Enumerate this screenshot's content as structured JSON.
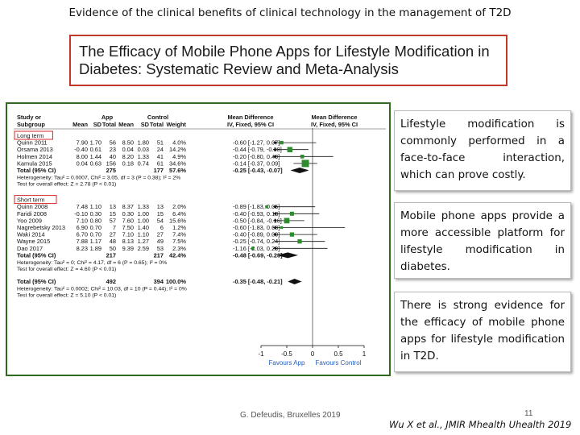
{
  "slide": {
    "title": "Evidence  of the clinical benefits  of clinical technology  in the management of T2D",
    "paper_title_line1": "The Efficacy of Mobile Phone Apps for Lifestyle Modification in",
    "paper_title_line2": "Diabetes: Systematic Review and Meta-Analysis",
    "bullets": [
      "Lifestyle modification is commonly performed in a face-to-face interaction, which can prove costly.",
      "Mobile phone apps provide a more accessible platform for lifestyle modification in diabetes.",
      "There is strong evidence for the efficacy of mobile phone apps for lifestyle modification in T2D."
    ],
    "footer_left": "G. Defeudis, Bruxelles 2019",
    "page_number": "11",
    "citation": "Wu X et al., JMIR Mhealth Uhealth 2019"
  },
  "forest": {
    "headers": {
      "study_or": "Study or",
      "subgroup": "Subgroup",
      "app": "App",
      "control": "Control",
      "mean_difference": "Mean Difference",
      "iv_fixed": "IV, Fixed, 95% CI",
      "mean": "Mean",
      "sd": "SD",
      "total": "Total",
      "weight": "Weight"
    },
    "groups": [
      {
        "label": "Long term",
        "studies": [
          {
            "study": "Quinn 2011",
            "app_mean": "7.90",
            "app_sd": "1.70",
            "app_total": "56",
            "ctrl_mean": "8.50",
            "ctrl_sd": "1.80",
            "ctrl_total": "51",
            "weight": "4.0%",
            "ci": "-0.60 [-1.27, 0.07]",
            "md": -0.6,
            "lo": -1.27,
            "hi": 0.07
          },
          {
            "study": "Orsama 2013",
            "app_mean": "-0.40",
            "app_sd": "0.61",
            "app_total": "23",
            "ctrl_mean": "0.04",
            "ctrl_sd": "0.03",
            "ctrl_total": "24",
            "weight": "14.2%",
            "ci": "-0.44 [-0.79, -0.08]",
            "md": -0.44,
            "lo": -0.79,
            "hi": -0.08
          },
          {
            "study": "Holmen 2014",
            "app_mean": "8.00",
            "app_sd": "1.44",
            "app_total": "40",
            "ctrl_mean": "8.20",
            "ctrl_sd": "1.33",
            "ctrl_total": "41",
            "weight": "4.9%",
            "ci": "-0.20 [-0.80, 0.40]",
            "md": -0.2,
            "lo": -0.8,
            "hi": 0.4
          },
          {
            "study": "Kamula 2015",
            "app_mean": "0.04",
            "app_sd": "0.63",
            "app_total": "156",
            "ctrl_mean": "0.18",
            "ctrl_sd": "0.74",
            "ctrl_total": "61",
            "weight": "34.6%",
            "ci": "-0.14 [-0.37, 0.09]",
            "md": -0.14,
            "lo": -0.37,
            "hi": 0.09
          }
        ],
        "total": {
          "label": "Total (95% CI)",
          "app_total": "275",
          "ctrl_total": "177",
          "weight": "57.6%",
          "ci": "-0.25 [-0.43, -0.07]",
          "md": -0.25,
          "lo": -0.43,
          "hi": -0.07
        },
        "heterogeneity": "Heterogeneity: Tau² = 0.0007, Chi² = 3.05, df = 3 (P = 0.38); I² = 2%",
        "overall": "Test for overall effect: Z = 2.78 (P < 0.01)"
      },
      {
        "label": "Short term",
        "studies": [
          {
            "study": "Quinn 2008",
            "app_mean": "7.48",
            "app_sd": "1.10",
            "app_total": "13",
            "ctrl_mean": "8.37",
            "ctrl_sd": "1.33",
            "ctrl_total": "13",
            "weight": "2.0%",
            "ci": "-0.89 [-1.83, 0.05]",
            "md": -0.89,
            "lo": -1.83,
            "hi": 0.05
          },
          {
            "study": "Faridi 2008",
            "app_mean": "-0.10",
            "app_sd": "0.30",
            "app_total": "15",
            "ctrl_mean": "0.30",
            "ctrl_sd": "1.00",
            "ctrl_total": "15",
            "weight": "6.4%",
            "ci": "-0.40 [-0.93, 0.13]",
            "md": -0.4,
            "lo": -0.93,
            "hi": 0.13
          },
          {
            "study": "Yoo 2009",
            "app_mean": "7.10",
            "app_sd": "0.80",
            "app_total": "57",
            "ctrl_mean": "7.60",
            "ctrl_sd": "1.00",
            "ctrl_total": "54",
            "weight": "15.6%",
            "ci": "-0.50 [-0.84, -0.16]",
            "md": -0.5,
            "lo": -0.84,
            "hi": -0.16
          },
          {
            "study": "Nagrebetsky 2013",
            "app_mean": "6.90",
            "app_sd": "0.70",
            "app_total": "7",
            "ctrl_mean": "7.50",
            "ctrl_sd": "1.40",
            "ctrl_total": "6",
            "weight": "1.2%",
            "ci": "-0.60 [-1.83, 0.63]",
            "md": -0.6,
            "lo": -1.83,
            "hi": 0.63
          },
          {
            "study": "Waki 2014",
            "app_mean": "6.70",
            "app_sd": "0.70",
            "app_total": "27",
            "ctrl_mean": "7.10",
            "ctrl_sd": "1.10",
            "ctrl_total": "27",
            "weight": "7.4%",
            "ci": "-0.40 [-0.89, 0.09]",
            "md": -0.4,
            "lo": -0.89,
            "hi": 0.09
          },
          {
            "study": "Wayne 2015",
            "app_mean": "7.88",
            "app_sd": "1.17",
            "app_total": "48",
            "ctrl_mean": "8.13",
            "ctrl_sd": "1.27",
            "ctrl_total": "49",
            "weight": "7.5%",
            "ci": "-0.25 [-0.74, 0.24]",
            "md": -0.25,
            "lo": -0.74,
            "hi": 0.24
          },
          {
            "study": "Dao 2017",
            "app_mean": "8.23",
            "app_sd": "1.89",
            "app_total": "50",
            "ctrl_mean": "9.39",
            "ctrl_sd": "2.59",
            "ctrl_total": "53",
            "weight": "2.3%",
            "ci": "-1.16 [-2.03, 0.29]",
            "md": -1.16,
            "lo": -2.03,
            "hi": 0.29
          }
        ],
        "total": {
          "label": "Total (95% CI)",
          "app_total": "217",
          "ctrl_total": "217",
          "weight": "42.4%",
          "ci": "-0.48 [-0.69, -0.28]",
          "md": -0.48,
          "lo": -0.69,
          "hi": -0.28
        },
        "heterogeneity": "Heterogeneity: Tau² = 0; Chi² = 4.17, df = 6 (P = 0.65); I² = 0%",
        "overall": "Test for overall effect: Z = 4.60 (P < 0.01)"
      }
    ],
    "grand_total": {
      "label": "Total (95% CI)",
      "app_total": "492",
      "ctrl_total": "394",
      "weight": "100.0%",
      "ci": "-0.35 [-0.48, -0.21]",
      "md": -0.35,
      "lo": -0.48,
      "hi": -0.21
    },
    "grand_heterogeneity": "Heterogeneity: Tau² = 0.0002; Chi² = 10.03, df = 10 (P = 0.44); I² = 0%",
    "grand_overall": "Test for overall effect: Z = 5.10 (P < 0.01)",
    "axis": {
      "ticks": [
        "-1",
        "-0.5",
        "0",
        "0.5",
        "1"
      ],
      "tick_values": [
        -1,
        -0.5,
        0,
        0.5,
        1
      ],
      "range": [
        -1,
        1
      ],
      "favours_left": "Favours App",
      "favours_right": "Favours Control"
    },
    "colors": {
      "study_marker": "#2e8b2e",
      "diamond": "#111111",
      "group_label_box": "#d62728",
      "favours": "#1f5fbf"
    }
  }
}
